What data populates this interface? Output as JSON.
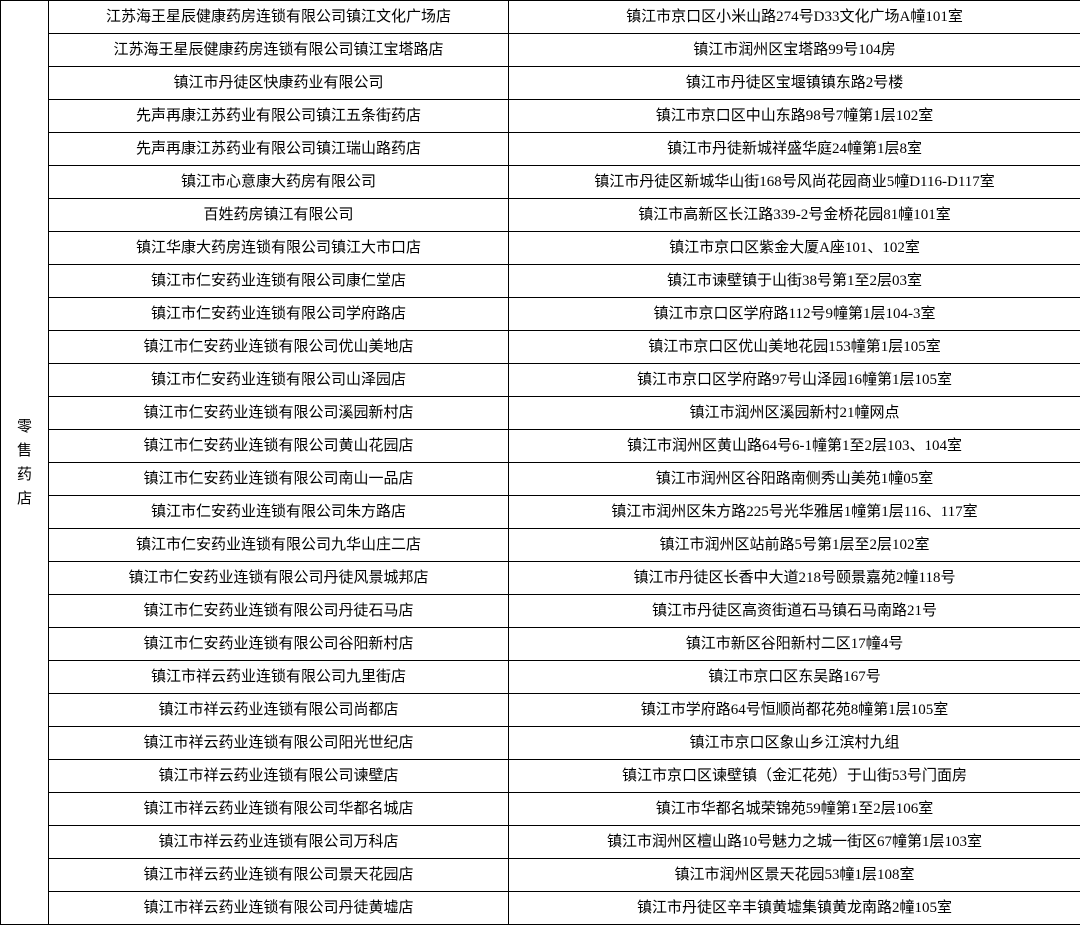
{
  "category_label": "零售药店",
  "category_chars": [
    "零",
    "售",
    "药",
    "店"
  ],
  "font_size": 15,
  "border_color": "#000000",
  "background_color": "#ffffff",
  "rows": [
    {
      "name": "江苏海王星辰健康药房连锁有限公司镇江文化广场店",
      "addr": "镇江市京口区小米山路274号D33文化广场A幢101室"
    },
    {
      "name": "江苏海王星辰健康药房连锁有限公司镇江宝塔路店",
      "addr": "镇江市润州区宝塔路99号104房"
    },
    {
      "name": "镇江市丹徒区快康药业有限公司",
      "addr": "镇江市丹徒区宝堰镇镇东路2号楼"
    },
    {
      "name": "先声再康江苏药业有限公司镇江五条街药店",
      "addr": "镇江市京口区中山东路98号7幢第1层102室"
    },
    {
      "name": "先声再康江苏药业有限公司镇江瑞山路药店",
      "addr": "镇江市丹徒新城祥盛华庭24幢第1层8室"
    },
    {
      "name": "镇江市心意康大药房有限公司",
      "addr": "镇江市丹徒区新城华山街168号风尚花园商业5幢D116-D117室"
    },
    {
      "name": "百姓药房镇江有限公司",
      "addr": "镇江市高新区长江路339-2号金桥花园81幢101室"
    },
    {
      "name": "镇江华康大药房连锁有限公司镇江大市口店",
      "addr": "镇江市京口区紫金大厦A座101、102室"
    },
    {
      "name": "镇江市仁安药业连锁有限公司康仁堂店",
      "addr": "镇江市谏壁镇于山街38号第1至2层03室"
    },
    {
      "name": "镇江市仁安药业连锁有限公司学府路店",
      "addr": "镇江市京口区学府路112号9幢第1层104-3室"
    },
    {
      "name": "镇江市仁安药业连锁有限公司优山美地店",
      "addr": "镇江市京口区优山美地花园153幢第1层105室"
    },
    {
      "name": "镇江市仁安药业连锁有限公司山泽园店",
      "addr": "镇江市京口区学府路97号山泽园16幢第1层105室"
    },
    {
      "name": "镇江市仁安药业连锁有限公司溪园新村店",
      "addr": "镇江市润州区溪园新村21幢网点"
    },
    {
      "name": "镇江市仁安药业连锁有限公司黄山花园店",
      "addr": "镇江市润州区黄山路64号6-1幢第1至2层103、104室"
    },
    {
      "name": "镇江市仁安药业连锁有限公司南山一品店",
      "addr": "镇江市润州区谷阳路南侧秀山美苑1幢05室"
    },
    {
      "name": "镇江市仁安药业连锁有限公司朱方路店",
      "addr": "镇江市润州区朱方路225号光华雅居1幢第1层116、117室"
    },
    {
      "name": "镇江市仁安药业连锁有限公司九华山庄二店",
      "addr": "镇江市润州区站前路5号第1层至2层102室"
    },
    {
      "name": "镇江市仁安药业连锁有限公司丹徒风景城邦店",
      "addr": "镇江市丹徒区长香中大道218号颐景嘉苑2幢118号"
    },
    {
      "name": "镇江市仁安药业连锁有限公司丹徒石马店",
      "addr": "镇江市丹徒区高资街道石马镇石马南路21号"
    },
    {
      "name": "镇江市仁安药业连锁有限公司谷阳新村店",
      "addr": "镇江市新区谷阳新村二区17幢4号"
    },
    {
      "name": "镇江市祥云药业连锁有限公司九里街店",
      "addr": "镇江市京口区东吴路167号"
    },
    {
      "name": "镇江市祥云药业连锁有限公司尚都店",
      "addr": "镇江市学府路64号恒顺尚都花苑8幢第1层105室"
    },
    {
      "name": "镇江市祥云药业连锁有限公司阳光世纪店",
      "addr": "镇江市京口区象山乡江滨村九组"
    },
    {
      "name": "镇江市祥云药业连锁有限公司谏壁店",
      "addr": "镇江市京口区谏壁镇（金汇花苑）于山街53号门面房"
    },
    {
      "name": "镇江市祥云药业连锁有限公司华都名城店",
      "addr": "镇江市华都名城荣锦苑59幢第1至2层106室"
    },
    {
      "name": "镇江市祥云药业连锁有限公司万科店",
      "addr": "镇江市润州区檀山路10号魅力之城一街区67幢第1层103室"
    },
    {
      "name": "镇江市祥云药业连锁有限公司景天花园店",
      "addr": "镇江市润州区景天花园53幢1层108室"
    },
    {
      "name": "镇江市祥云药业连锁有限公司丹徒黄墟店",
      "addr": "镇江市丹徒区辛丰镇黄墟集镇黄龙南路2幢105室"
    }
  ]
}
